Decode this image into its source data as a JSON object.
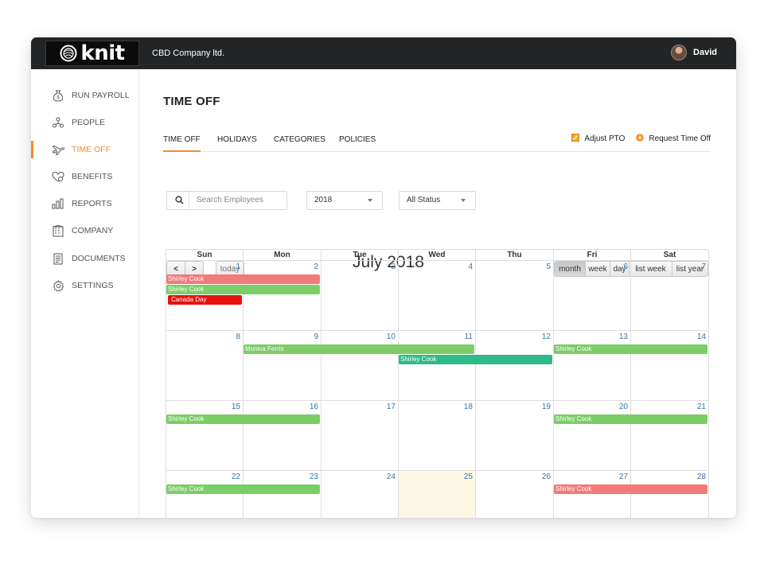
{
  "app": {
    "logo_text": "knit",
    "company": "CBD Company ltd.",
    "user_name": "David"
  },
  "sidebar": {
    "items": [
      {
        "label": "RUN PAYROLL",
        "icon": "money-bag-icon",
        "active": false
      },
      {
        "label": "PEOPLE",
        "icon": "people-icon",
        "active": false
      },
      {
        "label": "TIME OFF",
        "icon": "plane-icon",
        "active": true
      },
      {
        "label": "BENEFITS",
        "icon": "heart-icon",
        "active": false
      },
      {
        "label": "REPORTS",
        "icon": "bar-chart-icon",
        "active": false
      },
      {
        "label": "COMPANY",
        "icon": "building-icon",
        "active": false
      },
      {
        "label": "DOCUMENTS",
        "icon": "document-icon",
        "active": false
      },
      {
        "label": "SETTINGS",
        "icon": "gear-icon",
        "active": false
      }
    ]
  },
  "page": {
    "title": "TIME OFF"
  },
  "tabs": [
    {
      "label": "TIME OFF",
      "active": true
    },
    {
      "label": "HOLIDAYS",
      "active": false
    },
    {
      "label": "CATEGORIES",
      "active": false
    },
    {
      "label": "POLICIES",
      "active": false
    }
  ],
  "actions": {
    "adjust_pto": "Adjust PTO",
    "request_time_off": "Request Time Off"
  },
  "filters": {
    "search_placeholder": "Search Employees",
    "year": "2018",
    "status": "All Status"
  },
  "calendar": {
    "title": "July 2018",
    "today_label": "today",
    "prev_label": "<",
    "next_label": ">",
    "views": [
      {
        "label": "month",
        "active": true
      },
      {
        "label": "week",
        "active": false
      },
      {
        "label": "day",
        "active": false
      },
      {
        "label": "list week",
        "active": false
      },
      {
        "label": "list year",
        "active": false
      }
    ],
    "days_of_week": [
      "Sun",
      "Mon",
      "Tue",
      "Wed",
      "Thu",
      "Fri",
      "Sat"
    ],
    "weeks": [
      [
        1,
        2,
        3,
        4,
        5,
        6,
        7
      ],
      [
        8,
        9,
        10,
        11,
        12,
        13,
        14
      ],
      [
        15,
        16,
        17,
        18,
        19,
        20,
        21
      ],
      [
        22,
        23,
        24,
        25,
        26,
        27,
        28
      ]
    ],
    "today": 25,
    "colors": {
      "green": "#7ccd67",
      "salmon": "#f27a7a",
      "red": "#e8100f",
      "teal": "#2fba8a",
      "accent": "#f28c28"
    },
    "events": [
      {
        "title": "Shirley Cook",
        "week": 0,
        "start_day": 0,
        "span": 2,
        "lane": 0,
        "color": "salmon"
      },
      {
        "title": "Shirley Cook",
        "week": 0,
        "start_day": 0,
        "span": 2,
        "lane": 1,
        "color": "green"
      },
      {
        "title": "Canada Day",
        "week": 0,
        "start_day": 0,
        "span": 1,
        "lane": 2,
        "color": "red"
      },
      {
        "title": "Monica Ferris",
        "week": 1,
        "start_day": 1,
        "span": 3,
        "lane": 0,
        "color": "green"
      },
      {
        "title": "Shirley Cook",
        "week": 1,
        "start_day": 3,
        "span": 2,
        "lane": 1,
        "color": "teal"
      },
      {
        "title": "Shirley Cook",
        "week": 1,
        "start_day": 5,
        "span": 2,
        "lane": 0,
        "color": "green"
      },
      {
        "title": "Shirley Cook",
        "week": 2,
        "start_day": 0,
        "span": 2,
        "lane": 0,
        "color": "green"
      },
      {
        "title": "Shirley Cook",
        "week": 2,
        "start_day": 5,
        "span": 2,
        "lane": 0,
        "color": "green"
      },
      {
        "title": "Shirley Cook",
        "week": 3,
        "start_day": 0,
        "span": 2,
        "lane": 0,
        "color": "green"
      },
      {
        "title": "Shirley Cook",
        "week": 3,
        "start_day": 5,
        "span": 2,
        "lane": 0,
        "color": "salmon"
      }
    ]
  }
}
